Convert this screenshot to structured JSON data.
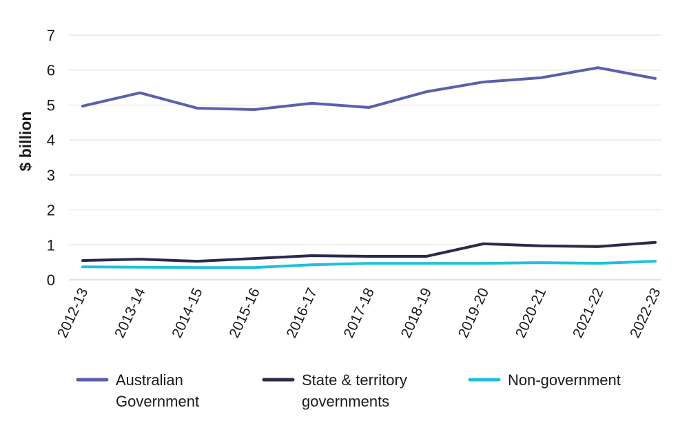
{
  "chart_data": {
    "type": "line",
    "title": "",
    "xlabel": "",
    "ylabel": "$ billion",
    "ylim": [
      0,
      7
    ],
    "yticks": [
      "0",
      "1",
      "2",
      "3",
      "4",
      "5",
      "6",
      "7"
    ],
    "grid": true,
    "legend_position": "bottom",
    "categories": [
      "2012-13",
      "2013-14",
      "2014-15",
      "2015-16",
      "2016-17",
      "2017-18",
      "2018-19",
      "2019-20",
      "2020-21",
      "2021-22",
      "2022-23"
    ],
    "series": [
      {
        "name": "Australian Government",
        "legend_lines": [
          "Australian",
          "Government"
        ],
        "color": "#5b60ad",
        "values": [
          4.97,
          5.35,
          4.91,
          4.87,
          5.05,
          4.93,
          5.38,
          5.66,
          5.78,
          6.07,
          5.76
        ]
      },
      {
        "name": "State & territory governments",
        "legend_lines": [
          "State & territory",
          "governments"
        ],
        "color": "#2b2a4c",
        "values": [
          0.55,
          0.59,
          0.53,
          0.61,
          0.69,
          0.67,
          0.67,
          1.03,
          0.97,
          0.95,
          1.07
        ]
      },
      {
        "name": "Non-government",
        "legend_lines": [
          "Non-government"
        ],
        "color": "#20c0da",
        "values": [
          0.37,
          0.36,
          0.35,
          0.35,
          0.43,
          0.47,
          0.47,
          0.47,
          0.49,
          0.47,
          0.53
        ]
      }
    ]
  }
}
